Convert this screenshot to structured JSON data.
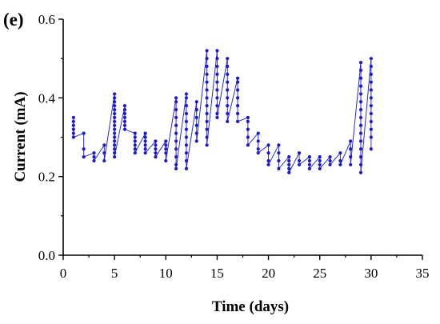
{
  "chart_data": {
    "type": "line",
    "panel_label": "(e)",
    "xlabel": "Time (days)",
    "ylabel": "Current (mA)",
    "xlim": [
      0,
      35
    ],
    "ylim": [
      0.0,
      0.6
    ],
    "x_ticks": [
      0,
      5,
      10,
      15,
      20,
      25,
      30,
      35
    ],
    "y_ticks": [
      0.0,
      0.2,
      0.4,
      0.6
    ],
    "x_tick_labels": [
      "0",
      "5",
      "10",
      "15",
      "20",
      "25",
      "30",
      "35"
    ],
    "y_tick_labels": [
      "0.0",
      "0.2",
      "0.4",
      "0.6"
    ],
    "grid": false,
    "line_color": "#2b2bd6",
    "marker_color": "#1a1acc",
    "series": [
      {
        "points": [
          [
            1.0,
            0.35
          ],
          [
            1.0,
            0.34
          ],
          [
            1.0,
            0.33
          ],
          [
            1.0,
            0.32
          ],
          [
            1.0,
            0.31
          ],
          [
            1.0,
            0.3
          ],
          [
            2.0,
            0.31
          ],
          [
            2.0,
            0.27
          ],
          [
            2.0,
            0.25
          ],
          [
            3.0,
            0.26
          ],
          [
            3.0,
            0.25
          ],
          [
            3.0,
            0.24
          ],
          [
            4.0,
            0.28
          ],
          [
            4.0,
            0.26
          ],
          [
            4.0,
            0.24
          ],
          [
            5.0,
            0.41
          ],
          [
            5.0,
            0.4
          ],
          [
            5.0,
            0.39
          ],
          [
            5.0,
            0.38
          ],
          [
            5.0,
            0.37
          ],
          [
            5.0,
            0.36
          ],
          [
            5.0,
            0.35
          ],
          [
            5.0,
            0.34
          ],
          [
            5.0,
            0.33
          ],
          [
            5.0,
            0.32
          ],
          [
            5.0,
            0.31
          ],
          [
            5.0,
            0.3
          ],
          [
            5.0,
            0.29
          ],
          [
            5.0,
            0.28
          ],
          [
            5.0,
            0.27
          ],
          [
            5.0,
            0.26
          ],
          [
            5.0,
            0.25
          ],
          [
            6.0,
            0.38
          ],
          [
            6.0,
            0.37
          ],
          [
            6.0,
            0.36
          ],
          [
            6.0,
            0.35
          ],
          [
            6.0,
            0.34
          ],
          [
            6.0,
            0.33
          ],
          [
            6.0,
            0.32
          ],
          [
            7.0,
            0.31
          ],
          [
            7.0,
            0.3
          ],
          [
            7.0,
            0.29
          ],
          [
            7.0,
            0.28
          ],
          [
            7.0,
            0.27
          ],
          [
            7.0,
            0.26
          ],
          [
            8.0,
            0.31
          ],
          [
            8.0,
            0.3
          ],
          [
            8.0,
            0.29
          ],
          [
            8.0,
            0.28
          ],
          [
            8.0,
            0.27
          ],
          [
            8.0,
            0.26
          ],
          [
            9.0,
            0.29
          ],
          [
            9.0,
            0.28
          ],
          [
            9.0,
            0.27
          ],
          [
            9.0,
            0.26
          ],
          [
            9.0,
            0.25
          ],
          [
            10.0,
            0.29
          ],
          [
            10.0,
            0.28
          ],
          [
            10.0,
            0.27
          ],
          [
            10.0,
            0.26
          ],
          [
            10.0,
            0.24
          ],
          [
            11.0,
            0.4
          ],
          [
            11.0,
            0.39
          ],
          [
            11.0,
            0.37
          ],
          [
            11.0,
            0.35
          ],
          [
            11.0,
            0.33
          ],
          [
            11.0,
            0.31
          ],
          [
            11.0,
            0.29
          ],
          [
            11.0,
            0.27
          ],
          [
            11.0,
            0.25
          ],
          [
            11.0,
            0.23
          ],
          [
            11.0,
            0.22
          ],
          [
            12.0,
            0.41
          ],
          [
            12.0,
            0.4
          ],
          [
            12.0,
            0.38
          ],
          [
            12.0,
            0.36
          ],
          [
            12.0,
            0.34
          ],
          [
            12.0,
            0.32
          ],
          [
            12.0,
            0.3
          ],
          [
            12.0,
            0.28
          ],
          [
            12.0,
            0.26
          ],
          [
            12.0,
            0.24
          ],
          [
            12.0,
            0.22
          ],
          [
            13.0,
            0.39
          ],
          [
            13.0,
            0.37
          ],
          [
            13.0,
            0.35
          ],
          [
            13.0,
            0.33
          ],
          [
            13.0,
            0.31
          ],
          [
            13.0,
            0.29
          ],
          [
            14.0,
            0.52
          ],
          [
            14.0,
            0.5
          ],
          [
            14.0,
            0.48
          ],
          [
            14.0,
            0.46
          ],
          [
            14.0,
            0.44
          ],
          [
            14.0,
            0.42
          ],
          [
            14.0,
            0.4
          ],
          [
            14.0,
            0.38
          ],
          [
            14.0,
            0.36
          ],
          [
            14.0,
            0.34
          ],
          [
            14.0,
            0.32
          ],
          [
            14.0,
            0.3
          ],
          [
            14.0,
            0.28
          ],
          [
            15.0,
            0.52
          ],
          [
            15.0,
            0.5
          ],
          [
            15.0,
            0.48
          ],
          [
            15.0,
            0.46
          ],
          [
            15.0,
            0.44
          ],
          [
            15.0,
            0.42
          ],
          [
            15.0,
            0.4
          ],
          [
            15.0,
            0.38
          ],
          [
            15.0,
            0.36
          ],
          [
            15.0,
            0.35
          ],
          [
            16.0,
            0.5
          ],
          [
            16.0,
            0.48
          ],
          [
            16.0,
            0.46
          ],
          [
            16.0,
            0.44
          ],
          [
            16.0,
            0.42
          ],
          [
            16.0,
            0.4
          ],
          [
            16.0,
            0.38
          ],
          [
            16.0,
            0.36
          ],
          [
            16.0,
            0.34
          ],
          [
            17.0,
            0.45
          ],
          [
            17.0,
            0.44
          ],
          [
            17.0,
            0.42
          ],
          [
            17.0,
            0.4
          ],
          [
            17.0,
            0.38
          ],
          [
            17.0,
            0.36
          ],
          [
            17.0,
            0.34
          ],
          [
            18.0,
            0.35
          ],
          [
            18.0,
            0.34
          ],
          [
            18.0,
            0.32
          ],
          [
            18.0,
            0.3
          ],
          [
            18.0,
            0.28
          ],
          [
            19.0,
            0.31
          ],
          [
            19.0,
            0.29
          ],
          [
            19.0,
            0.27
          ],
          [
            19.0,
            0.26
          ],
          [
            20.0,
            0.28
          ],
          [
            20.0,
            0.26
          ],
          [
            20.0,
            0.24
          ],
          [
            20.0,
            0.23
          ],
          [
            21.0,
            0.28
          ],
          [
            21.0,
            0.26
          ],
          [
            21.0,
            0.24
          ],
          [
            21.0,
            0.22
          ],
          [
            22.0,
            0.25
          ],
          [
            22.0,
            0.24
          ],
          [
            22.0,
            0.23
          ],
          [
            22.0,
            0.22
          ],
          [
            22.0,
            0.21
          ],
          [
            23.0,
            0.26
          ],
          [
            23.0,
            0.24
          ],
          [
            23.0,
            0.23
          ],
          [
            24.0,
            0.25
          ],
          [
            24.0,
            0.24
          ],
          [
            24.0,
            0.23
          ],
          [
            24.0,
            0.22
          ],
          [
            25.0,
            0.25
          ],
          [
            25.0,
            0.24
          ],
          [
            25.0,
            0.23
          ],
          [
            25.0,
            0.22
          ],
          [
            26.0,
            0.25
          ],
          [
            26.0,
            0.24
          ],
          [
            26.0,
            0.23
          ],
          [
            27.0,
            0.26
          ],
          [
            27.0,
            0.24
          ],
          [
            27.0,
            0.23
          ],
          [
            28.0,
            0.29
          ],
          [
            28.0,
            0.27
          ],
          [
            28.0,
            0.25
          ],
          [
            28.0,
            0.23
          ],
          [
            29.0,
            0.49
          ],
          [
            29.0,
            0.47
          ],
          [
            29.0,
            0.45
          ],
          [
            29.0,
            0.43
          ],
          [
            29.0,
            0.41
          ],
          [
            29.0,
            0.39
          ],
          [
            29.0,
            0.37
          ],
          [
            29.0,
            0.35
          ],
          [
            29.0,
            0.33
          ],
          [
            29.0,
            0.31
          ],
          [
            29.0,
            0.29
          ],
          [
            29.0,
            0.27
          ],
          [
            29.0,
            0.25
          ],
          [
            29.0,
            0.23
          ],
          [
            29.0,
            0.21
          ],
          [
            30.0,
            0.5
          ],
          [
            30.0,
            0.48
          ],
          [
            30.0,
            0.46
          ],
          [
            30.0,
            0.44
          ],
          [
            30.0,
            0.42
          ],
          [
            30.0,
            0.4
          ],
          [
            30.0,
            0.38
          ],
          [
            30.0,
            0.36
          ],
          [
            30.0,
            0.34
          ],
          [
            30.0,
            0.32
          ],
          [
            30.0,
            0.3
          ],
          [
            30.0,
            0.27
          ]
        ]
      }
    ]
  }
}
